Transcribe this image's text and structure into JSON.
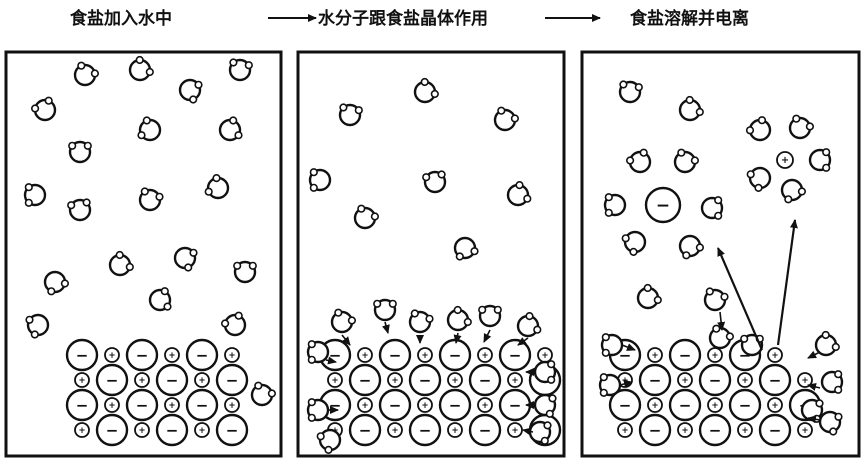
{
  "steps": [
    {
      "caption": "食盐加入水中"
    },
    {
      "caption": "水分子跟食盐晶体作用"
    },
    {
      "caption": "食盐溶解并电离"
    }
  ],
  "ion_symbols": {
    "anion": "−",
    "cation": "+"
  },
  "colors": {
    "ink": "#111111",
    "paper": "#ffffff"
  },
  "icons": [
    "water-molecule-icon",
    "chloride-ion-icon",
    "sodium-ion-icon",
    "arrow-icon"
  ]
}
